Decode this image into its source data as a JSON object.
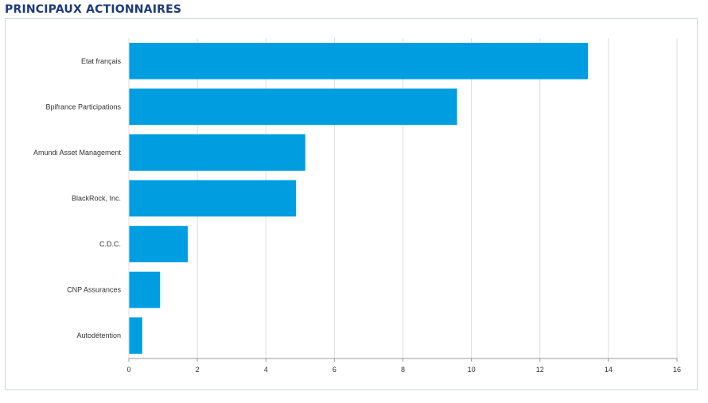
{
  "title": "PRINCIPAUX ACTIONNAIRES",
  "colors": {
    "bar": "#009ee0",
    "grid": "#d9dde3",
    "title": "#1d3a7a"
  },
  "chart_data": {
    "type": "bar",
    "orientation": "horizontal",
    "title": "PRINCIPAUX ACTIONNAIRES",
    "xlabel": "",
    "ylabel": "",
    "categories": [
      "Etat français",
      "Bpifrance Participations",
      "Amundi Asset Management",
      "BlackRock, Inc.",
      "C.D.C.",
      "CNP Assurances",
      "Autodétention"
    ],
    "values": [
      13.4,
      9.58,
      5.15,
      4.88,
      1.72,
      0.91,
      0.39
    ],
    "xlim": [
      0,
      16
    ],
    "xticks": [
      "0",
      "2",
      "4",
      "6",
      "8",
      "10",
      "12",
      "14",
      "16"
    ],
    "grid": true,
    "legend": "none"
  }
}
